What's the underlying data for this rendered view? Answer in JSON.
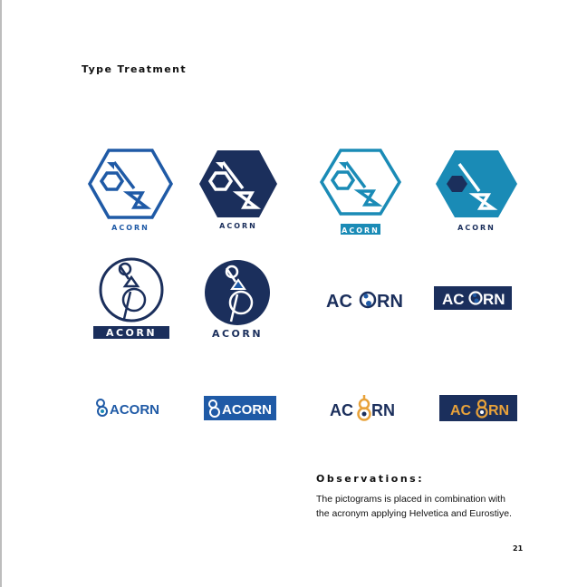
{
  "page": {
    "title": "Type Treatment",
    "page_number": "21"
  },
  "brand": {
    "name": "ACORN",
    "ac": "AC",
    "rn": "RN",
    "colors": {
      "blue": "#1f5aa6",
      "navy": "#1b2f5c",
      "teal": "#1a8bb6",
      "orange": "#e8a23a",
      "white": "#ffffff"
    }
  },
  "observations": {
    "heading": "Observations:",
    "line1": "The pictograms is placed in combination with",
    "line2": "the acronym applying Helvetica and Eurostiye."
  },
  "logo_variants": [
    {
      "name": "hexagon-outline-blue",
      "icon": "hexagon-pictogram-icon"
    },
    {
      "name": "hexagon-solid-navy",
      "icon": "hexagon-pictogram-icon"
    },
    {
      "name": "hexagon-outline-teal-bar",
      "icon": "hexagon-pictogram-icon"
    },
    {
      "name": "hexagon-solid-teal",
      "icon": "hexagon-pictogram-icon"
    },
    {
      "name": "circle-outline-navy-bar",
      "icon": "circle-pictogram-icon"
    },
    {
      "name": "circle-solid-navy",
      "icon": "circle-pictogram-icon"
    },
    {
      "name": "wordmark-navy",
      "icon": "acorn-o-icon"
    },
    {
      "name": "wordmark-navy-box",
      "icon": "acorn-o-icon"
    },
    {
      "name": "lockup-blue",
      "icon": "acorn-symbol-icon"
    },
    {
      "name": "lockup-blue-box",
      "icon": "acorn-symbol-icon"
    },
    {
      "name": "wordmark-navy-orange",
      "icon": "acorn-eight-icon"
    },
    {
      "name": "wordmark-navy-box-orange",
      "icon": "acorn-eight-icon"
    }
  ]
}
